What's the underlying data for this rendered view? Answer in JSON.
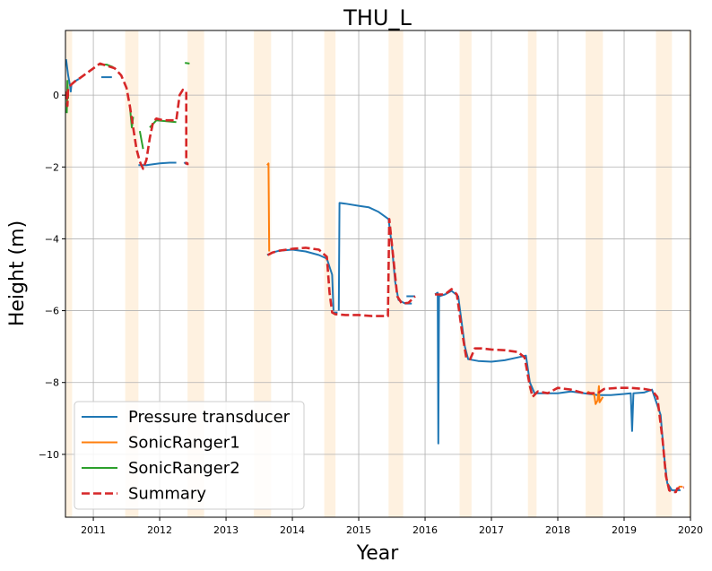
{
  "chart_data": {
    "type": "line",
    "title": "THU_L",
    "xlabel": "Year",
    "ylabel": "Height (m)",
    "xlim": [
      2010.58,
      2020.0
    ],
    "ylim": [
      -11.75,
      1.8
    ],
    "xticks": [
      2011,
      2012,
      2013,
      2014,
      2015,
      2016,
      2017,
      2018,
      2019,
      2020
    ],
    "yticks": [
      0,
      -2,
      -4,
      -6,
      -8,
      -10
    ],
    "ytick_labels": [
      "0",
      "−2",
      "−4",
      "−6",
      "−8",
      "−10"
    ],
    "grid": true,
    "legend_position": "lower-left",
    "melt_season_bands": [
      [
        2010.58,
        2010.68
      ],
      [
        2011.48,
        2011.68
      ],
      [
        2012.42,
        2012.67
      ],
      [
        2013.42,
        2013.68
      ],
      [
        2014.48,
        2014.65
      ],
      [
        2015.45,
        2015.67
      ],
      [
        2016.52,
        2016.7
      ],
      [
        2017.55,
        2017.68
      ],
      [
        2018.42,
        2018.68
      ],
      [
        2019.48,
        2019.72
      ],
      [
        2019.97,
        2020.0
      ]
    ],
    "series": [
      {
        "name": "Pressure transducer",
        "color": "#1f77b4",
        "style": "solid",
        "segments": [
          [
            [
              2010.59,
              1.0
            ],
            [
              2010.62,
              0.55
            ],
            [
              2010.65,
              0.25
            ],
            [
              2010.66,
              0.1
            ],
            [
              2010.67,
              0.3
            ],
            [
              2010.72,
              0.38
            ],
            [
              2010.78,
              0.45
            ]
          ],
          [
            [
              2011.12,
              0.5
            ],
            [
              2011.28,
              0.5
            ]
          ],
          [
            [
              2011.68,
              -1.95
            ],
            [
              2011.8,
              -1.95
            ],
            [
              2012.0,
              -1.9
            ],
            [
              2012.15,
              -1.88
            ],
            [
              2012.25,
              -1.88
            ]
          ],
          [
            [
              2012.37,
              -1.87
            ],
            [
              2012.4,
              -1.92
            ]
          ],
          [
            [
              2013.62,
              -4.45
            ],
            [
              2013.7,
              -4.38
            ],
            [
              2013.8,
              -4.33
            ],
            [
              2014.0,
              -4.3
            ],
            [
              2014.2,
              -4.35
            ],
            [
              2014.4,
              -4.45
            ],
            [
              2014.52,
              -4.55
            ],
            [
              2014.6,
              -5.0
            ],
            [
              2014.62,
              -6.0
            ]
          ],
          [
            [
              2014.62,
              -6.05
            ],
            [
              2014.68,
              -6.05
            ]
          ],
          [
            [
              2014.7,
              -6.0
            ],
            [
              2014.71,
              -3.0
            ],
            [
              2014.8,
              -3.02
            ],
            [
              2015.0,
              -3.08
            ],
            [
              2015.15,
              -3.12
            ],
            [
              2015.3,
              -3.25
            ],
            [
              2015.45,
              -3.45
            ],
            [
              2015.5,
              -4.2
            ],
            [
              2015.55,
              -5.2
            ],
            [
              2015.6,
              -5.7
            ],
            [
              2015.7,
              -5.8
            ],
            [
              2015.8,
              -5.8
            ]
          ],
          [
            [
              2015.72,
              -5.6
            ],
            [
              2015.85,
              -5.6
            ]
          ],
          [
            [
              2016.15,
              -5.55
            ],
            [
              2016.19,
              -5.5
            ],
            [
              2016.2,
              -9.7
            ],
            [
              2016.21,
              -5.6
            ],
            [
              2016.3,
              -5.55
            ],
            [
              2016.4,
              -5.45
            ],
            [
              2016.5,
              -5.6
            ],
            [
              2016.6,
              -7.0
            ],
            [
              2016.65,
              -7.35
            ],
            [
              2016.8,
              -7.4
            ],
            [
              2017.0,
              -7.42
            ],
            [
              2017.2,
              -7.38
            ],
            [
              2017.4,
              -7.3
            ],
            [
              2017.52,
              -7.25
            ],
            [
              2017.58,
              -8.0
            ],
            [
              2017.65,
              -8.3
            ],
            [
              2017.8,
              -8.3
            ],
            [
              2018.0,
              -8.3
            ],
            [
              2018.2,
              -8.25
            ],
            [
              2018.4,
              -8.3
            ],
            [
              2018.6,
              -8.35
            ],
            [
              2018.8,
              -8.35
            ],
            [
              2019.0,
              -8.32
            ],
            [
              2019.1,
              -8.3
            ],
            [
              2019.12,
              -9.35
            ],
            [
              2019.14,
              -8.3
            ],
            [
              2019.3,
              -8.28
            ],
            [
              2019.42,
              -8.2
            ],
            [
              2019.55,
              -8.9
            ],
            [
              2019.6,
              -10.0
            ],
            [
              2019.65,
              -10.8
            ],
            [
              2019.72,
              -11.0
            ],
            [
              2019.85,
              -11.0
            ]
          ]
        ]
      },
      {
        "name": "SonicRanger1",
        "color": "#ff7f0e",
        "style": "solid",
        "segments": [
          [
            [
              2013.62,
              -1.95
            ],
            [
              2013.64,
              -1.9
            ],
            [
              2013.65,
              -4.35
            ]
          ],
          [
            [
              2018.45,
              -8.25
            ],
            [
              2018.55,
              -8.35
            ],
            [
              2018.57,
              -8.6
            ],
            [
              2018.6,
              -8.5
            ],
            [
              2018.62,
              -8.1
            ],
            [
              2018.63,
              -8.55
            ],
            [
              2018.68,
              -8.4
            ]
          ],
          [
            [
              2019.82,
              -10.9
            ],
            [
              2019.88,
              -10.9
            ]
          ]
        ]
      },
      {
        "name": "SonicRanger2",
        "color": "#2ca02c",
        "style": "solid",
        "segments": [
          [
            [
              2010.6,
              -0.5
            ],
            [
              2010.61,
              0.4
            ],
            [
              2010.62,
              -0.1
            ]
          ],
          [
            [
              2011.1,
              0.85
            ],
            [
              2011.2,
              0.85
            ],
            [
              2011.3,
              0.78
            ]
          ],
          [
            [
              2011.55,
              -0.3
            ],
            [
              2011.58,
              -0.9
            ],
            [
              2011.6,
              -0.6
            ]
          ],
          [
            [
              2011.7,
              -1.0
            ],
            [
              2011.75,
              -1.5
            ]
          ],
          [
            [
              2011.85,
              -0.9
            ],
            [
              2011.95,
              -0.7
            ],
            [
              2012.25,
              -0.75
            ]
          ],
          [
            [
              2012.38,
              0.9
            ],
            [
              2012.45,
              0.88
            ]
          ]
        ]
      },
      {
        "name": "Summary",
        "color": "#d62728",
        "style": "dashed",
        "segments": [
          [
            [
              2010.6,
              0.1
            ],
            [
              2010.61,
              -0.3
            ],
            [
              2010.62,
              0.2
            ],
            [
              2010.67,
              0.3
            ],
            [
              2010.72,
              0.38
            ],
            [
              2010.78,
              0.45
            ],
            [
              2011.1,
              0.88
            ],
            [
              2011.2,
              0.82
            ],
            [
              2011.32,
              0.75
            ],
            [
              2011.42,
              0.55
            ],
            [
              2011.5,
              0.2
            ],
            [
              2011.55,
              -0.3
            ],
            [
              2011.6,
              -0.9
            ],
            [
              2011.65,
              -1.5
            ],
            [
              2011.7,
              -1.85
            ],
            [
              2011.75,
              -2.05
            ],
            [
              2011.8,
              -1.8
            ],
            [
              2011.85,
              -1.2
            ],
            [
              2011.9,
              -0.75
            ],
            [
              2011.95,
              -0.65
            ],
            [
              2012.05,
              -0.7
            ],
            [
              2012.25,
              -0.7
            ],
            [
              2012.3,
              0.0
            ],
            [
              2012.35,
              0.15
            ],
            [
              2012.4,
              0.1
            ],
            [
              2012.4,
              -1.9
            ],
            [
              2012.42,
              -1.9
            ],
            [
              2012.42,
              -1.95
            ]
          ],
          [
            [
              2013.63,
              -4.45
            ],
            [
              2013.7,
              -4.38
            ],
            [
              2013.8,
              -4.33
            ],
            [
              2014.0,
              -4.28
            ],
            [
              2014.2,
              -4.25
            ],
            [
              2014.4,
              -4.3
            ],
            [
              2014.52,
              -4.5
            ],
            [
              2014.56,
              -5.5
            ],
            [
              2014.6,
              -6.05
            ],
            [
              2014.65,
              -6.1
            ],
            [
              2014.8,
              -6.12
            ],
            [
              2015.0,
              -6.12
            ],
            [
              2015.2,
              -6.15
            ],
            [
              2015.44,
              -6.15
            ],
            [
              2015.46,
              -3.45
            ],
            [
              2015.52,
              -4.5
            ],
            [
              2015.58,
              -5.6
            ],
            [
              2015.65,
              -5.8
            ],
            [
              2015.75,
              -5.78
            ],
            [
              2015.85,
              -5.6
            ]
          ],
          [
            [
              2016.15,
              -5.55
            ],
            [
              2016.3,
              -5.55
            ],
            [
              2016.4,
              -5.4
            ],
            [
              2016.48,
              -5.55
            ],
            [
              2016.55,
              -6.5
            ],
            [
              2016.62,
              -7.3
            ],
            [
              2016.68,
              -7.35
            ],
            [
              2016.75,
              -7.05
            ],
            [
              2016.85,
              -7.05
            ],
            [
              2017.0,
              -7.08
            ],
            [
              2017.2,
              -7.1
            ],
            [
              2017.4,
              -7.15
            ],
            [
              2017.5,
              -7.3
            ],
            [
              2017.58,
              -8.1
            ],
            [
              2017.62,
              -8.4
            ],
            [
              2017.7,
              -8.25
            ],
            [
              2017.85,
              -8.3
            ],
            [
              2018.0,
              -8.15
            ],
            [
              2018.2,
              -8.2
            ],
            [
              2018.4,
              -8.3
            ],
            [
              2018.6,
              -8.3
            ],
            [
              2018.7,
              -8.18
            ],
            [
              2018.9,
              -8.15
            ],
            [
              2019.1,
              -8.15
            ],
            [
              2019.3,
              -8.18
            ],
            [
              2019.42,
              -8.22
            ],
            [
              2019.5,
              -8.4
            ],
            [
              2019.58,
              -9.6
            ],
            [
              2019.63,
              -10.6
            ],
            [
              2019.68,
              -11.0
            ],
            [
              2019.72,
              -11.05
            ],
            [
              2019.78,
              -11.05
            ],
            [
              2019.8,
              -10.95
            ],
            [
              2019.9,
              -10.92
            ]
          ]
        ]
      }
    ]
  }
}
